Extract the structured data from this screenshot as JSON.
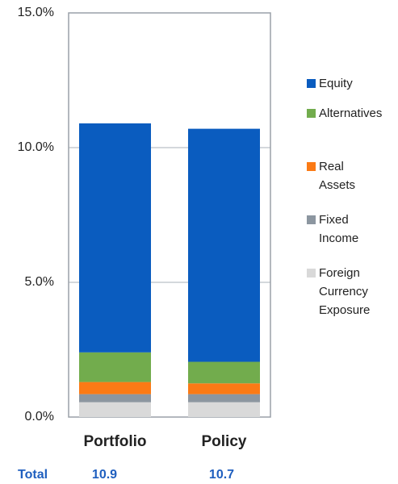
{
  "chart_data": {
    "type": "stacked_bar",
    "categories": [
      "Portfolio",
      "Policy"
    ],
    "series": [
      {
        "name": "Equity",
        "color": "#0a5cbf",
        "values": [
          8.5,
          8.65
        ]
      },
      {
        "name": "Alternatives",
        "color": "#72ac4d",
        "values": [
          1.1,
          0.8
        ]
      },
      {
        "name": "Real Assets",
        "color": "#fb7a15",
        "values": [
          0.45,
          0.4
        ]
      },
      {
        "name": "Fixed Income",
        "color": "#8c96a0",
        "values": [
          0.3,
          0.3
        ]
      },
      {
        "name": "Foreign Currency Exposure",
        "color": "#d9d9d9",
        "values": [
          0.55,
          0.55
        ]
      }
    ],
    "ylim": [
      0,
      15
    ],
    "yticks": [
      {
        "value": 0,
        "label": "0.0%"
      },
      {
        "value": 5,
        "label": "5.0%"
      },
      {
        "value": 10,
        "label": "10.0%"
      },
      {
        "value": 15,
        "label": "15.0%"
      }
    ],
    "grid": true,
    "legend": "right",
    "totals_label": "Total",
    "totals": [
      10.9,
      10.7
    ]
  }
}
